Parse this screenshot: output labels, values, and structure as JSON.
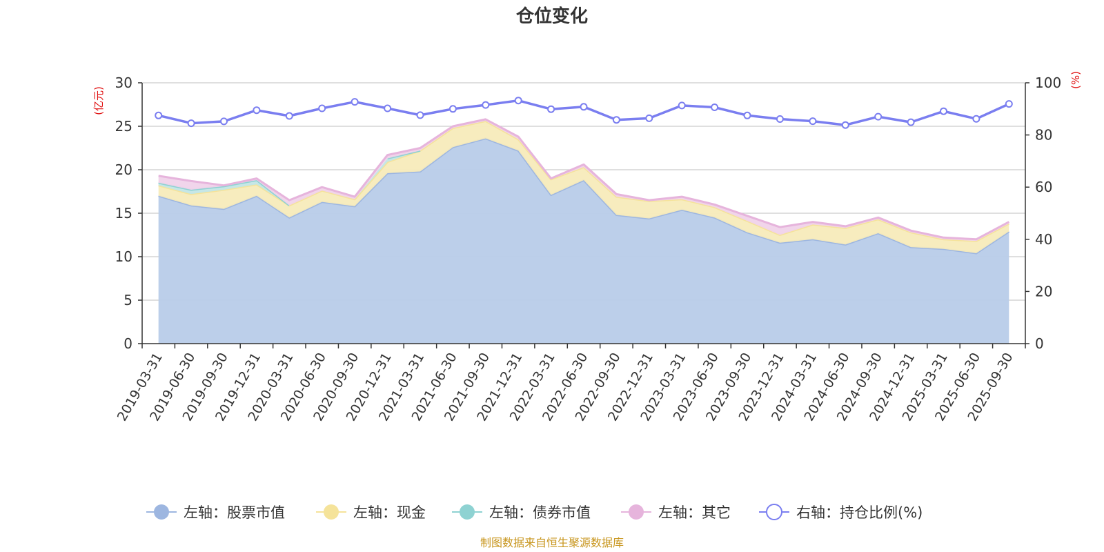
{
  "chart_data": {
    "type": "area",
    "title": "仓位变化",
    "source_note": "制图数据来自恒生聚源数据库",
    "left_axis": {
      "unit": "(亿元)",
      "min": 0,
      "max": 30,
      "ticks": [
        0,
        5,
        10,
        15,
        20,
        25,
        30
      ]
    },
    "right_axis": {
      "unit": "(%)",
      "min": 0,
      "max": 100,
      "ticks": [
        0,
        20,
        40,
        60,
        80,
        100
      ]
    },
    "categories": [
      "2019-03-31",
      "2019-06-30",
      "2019-09-30",
      "2019-12-31",
      "2020-03-31",
      "2020-06-30",
      "2020-09-30",
      "2020-12-31",
      "2021-03-31",
      "2021-06-30",
      "2021-09-30",
      "2021-12-31",
      "2022-03-31",
      "2022-06-30",
      "2022-09-30",
      "2022-12-31",
      "2023-03-31",
      "2023-06-30",
      "2023-09-30",
      "2023-12-31",
      "2024-03-31",
      "2024-06-30",
      "2024-09-30",
      "2024-12-31",
      "2025-03-31",
      "2025-06-30",
      "2025-09-30"
    ],
    "series": [
      {
        "name": "左轴：股票市值",
        "axis": "left",
        "stacked": true,
        "color": "#9db6e0",
        "fill": "#b8cce9",
        "values": [
          17.0,
          15.9,
          15.5,
          17.0,
          14.5,
          16.3,
          15.8,
          19.6,
          19.8,
          22.6,
          23.6,
          22.2,
          17.1,
          18.8,
          14.8,
          14.4,
          15.4,
          14.5,
          12.8,
          11.6,
          12.0,
          11.4,
          12.7,
          11.1,
          10.9,
          10.4,
          12.9
        ]
      },
      {
        "name": "左轴：现金",
        "axis": "left",
        "stacked": true,
        "color": "#f5e39a",
        "fill": "#f7ebbb",
        "values": [
          1.2,
          1.3,
          2.2,
          1.3,
          1.4,
          1.3,
          0.8,
          1.3,
          2.4,
          2.2,
          2.0,
          1.3,
          1.8,
          1.5,
          2.1,
          2.0,
          1.2,
          1.2,
          1.3,
          0.9,
          1.7,
          1.9,
          1.6,
          1.7,
          1.1,
          1.4,
          0.9
        ]
      },
      {
        "name": "左轴：债券市值",
        "axis": "left",
        "stacked": true,
        "color": "#8ed2d2",
        "fill": "#c3e6e6",
        "values": [
          0.3,
          0.5,
          0.4,
          0.5,
          0,
          0,
          0,
          0.4,
          0,
          0,
          0,
          0,
          0,
          0,
          0,
          0,
          0,
          0,
          0,
          0,
          0,
          0,
          0,
          0,
          0,
          0,
          0
        ]
      },
      {
        "name": "左轴：其它",
        "axis": "left",
        "stacked": true,
        "color": "#e6b4dc",
        "fill": "#f0d3ea",
        "values": [
          0.8,
          1.0,
          0.1,
          0.2,
          0.6,
          0.4,
          0.3,
          0.4,
          0.3,
          0.2,
          0.2,
          0.3,
          0.1,
          0.3,
          0.3,
          0.1,
          0.3,
          0.3,
          0.6,
          0.9,
          0.3,
          0.2,
          0.2,
          0.2,
          0.2,
          0.2,
          0.2
        ]
      },
      {
        "name": "右轴：持仓比例(%)",
        "axis": "right",
        "type": "line",
        "color": "#7a7ef0",
        "values": [
          87.5,
          84.5,
          85.2,
          89.5,
          87.3,
          90.2,
          92.7,
          90.2,
          87.6,
          90.0,
          91.5,
          93.2,
          89.9,
          90.8,
          85.8,
          86.4,
          91.3,
          90.6,
          87.5,
          86.1,
          85.3,
          83.8,
          87.0,
          84.9,
          89.1,
          86.2,
          91.9
        ]
      }
    ]
  }
}
